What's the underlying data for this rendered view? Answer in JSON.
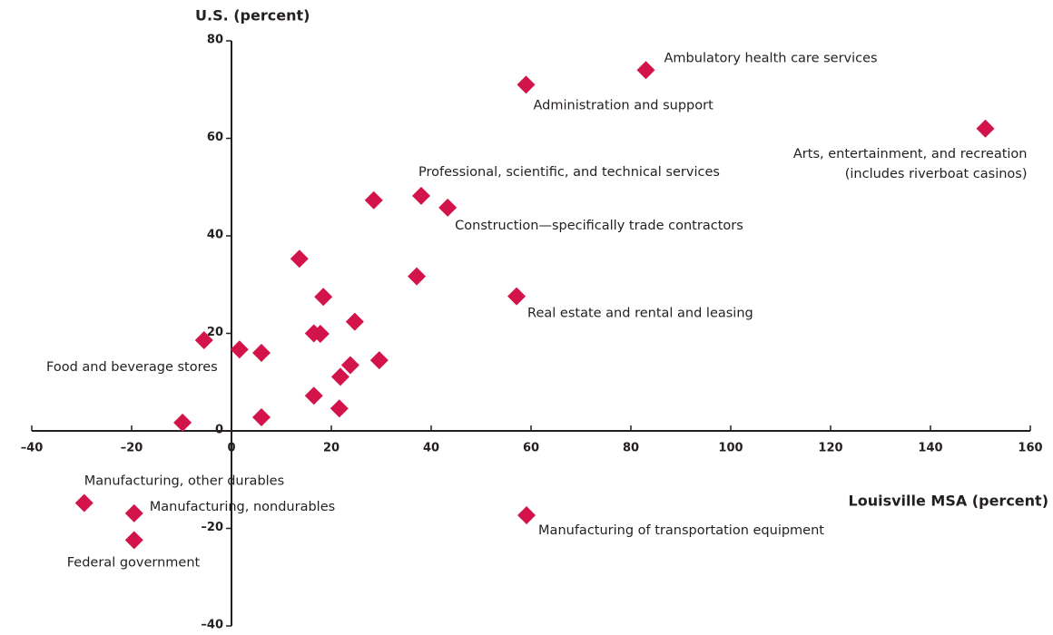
{
  "chart_data": {
    "type": "scatter",
    "x_label": "Louisville MSA (percent)",
    "y_label": "U.S. (percent)",
    "color": "#d2144a",
    "xlim": [
      -40,
      160
    ],
    "ylim": [
      -40,
      80
    ],
    "xticks": [
      {
        "value": -40,
        "label": "–40"
      },
      {
        "value": -20,
        "label": "–20"
      },
      0,
      20,
      40,
      60,
      80,
      100,
      120,
      140,
      160
    ],
    "yticks": [
      {
        "value": -40,
        "label": "–40"
      },
      {
        "value": -20,
        "label": "–20"
      },
      0,
      20,
      40,
      60,
      80
    ],
    "x": [
      83,
      59,
      151,
      38,
      28.5,
      43.3,
      13.6,
      37.1,
      57.1,
      18.4,
      24.7,
      16.5,
      17.8,
      -5.5,
      1.6,
      6,
      29.6,
      23.8,
      21.8,
      16.5,
      21.6,
      6,
      -9.8,
      -29.5,
      -19.5,
      59.1,
      -19.5
    ],
    "values": [
      74,
      71,
      62,
      48.2,
      47.3,
      45.8,
      35.3,
      31.7,
      27.6,
      27.5,
      22.4,
      20,
      19.9,
      18.6,
      16.7,
      16,
      14.5,
      13.5,
      11.1,
      7.2,
      4.6,
      2.8,
      1.7,
      -14.8,
      -16.9,
      -17.3,
      -22.4
    ],
    "labels": [
      "Ambulatory health care services",
      "Administration and support",
      [
        "Arts, entertainment, and recreation",
        "(includes riverboat casinos)"
      ],
      "Professional, scientific, and technical services",
      null,
      "Construction—specifically trade contractors",
      null,
      null,
      "Real estate and rental and leasing",
      null,
      null,
      null,
      null,
      "Food and beverage stores",
      null,
      null,
      null,
      null,
      null,
      null,
      null,
      null,
      null,
      "Manufacturing, other durables",
      "Manufacturing, nondurables",
      "Manufacturing of transportation equipment",
      "Federal government"
    ]
  }
}
